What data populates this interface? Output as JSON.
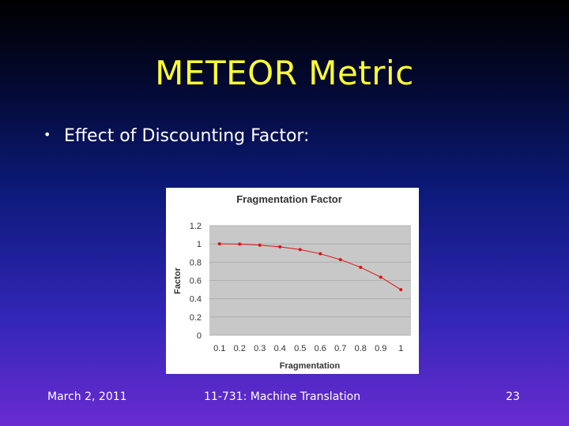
{
  "slide": {
    "title": "METEOR Metric",
    "bullet_symbol": "•",
    "bullet": "Effect of Discounting Factor:"
  },
  "footer": {
    "date": "March 2, 2011",
    "course": "11-731: Machine Translation",
    "page": "23"
  },
  "colors": {
    "title": "#ffff33",
    "series": "#e01010",
    "plot_bg": "#c8c8c8"
  },
  "chart_data": {
    "type": "line",
    "title": "Fragmentation Factor",
    "xlabel": "Fragmentation",
    "ylabel": "Factor",
    "categories": [
      "0.1",
      "0.2",
      "0.3",
      "0.4",
      "0.5",
      "0.6",
      "0.7",
      "0.8",
      "0.9",
      "1"
    ],
    "yticks": [
      "0",
      "0.2",
      "0.4",
      "0.6",
      "0.8",
      "1",
      "1.2"
    ],
    "ylim": [
      0,
      1.2
    ],
    "grid": true,
    "series": [
      {
        "name": "Factor",
        "values": [
          1.0,
          0.998,
          0.986,
          0.968,
          0.938,
          0.892,
          0.828,
          0.744,
          0.636,
          0.5
        ]
      }
    ]
  }
}
